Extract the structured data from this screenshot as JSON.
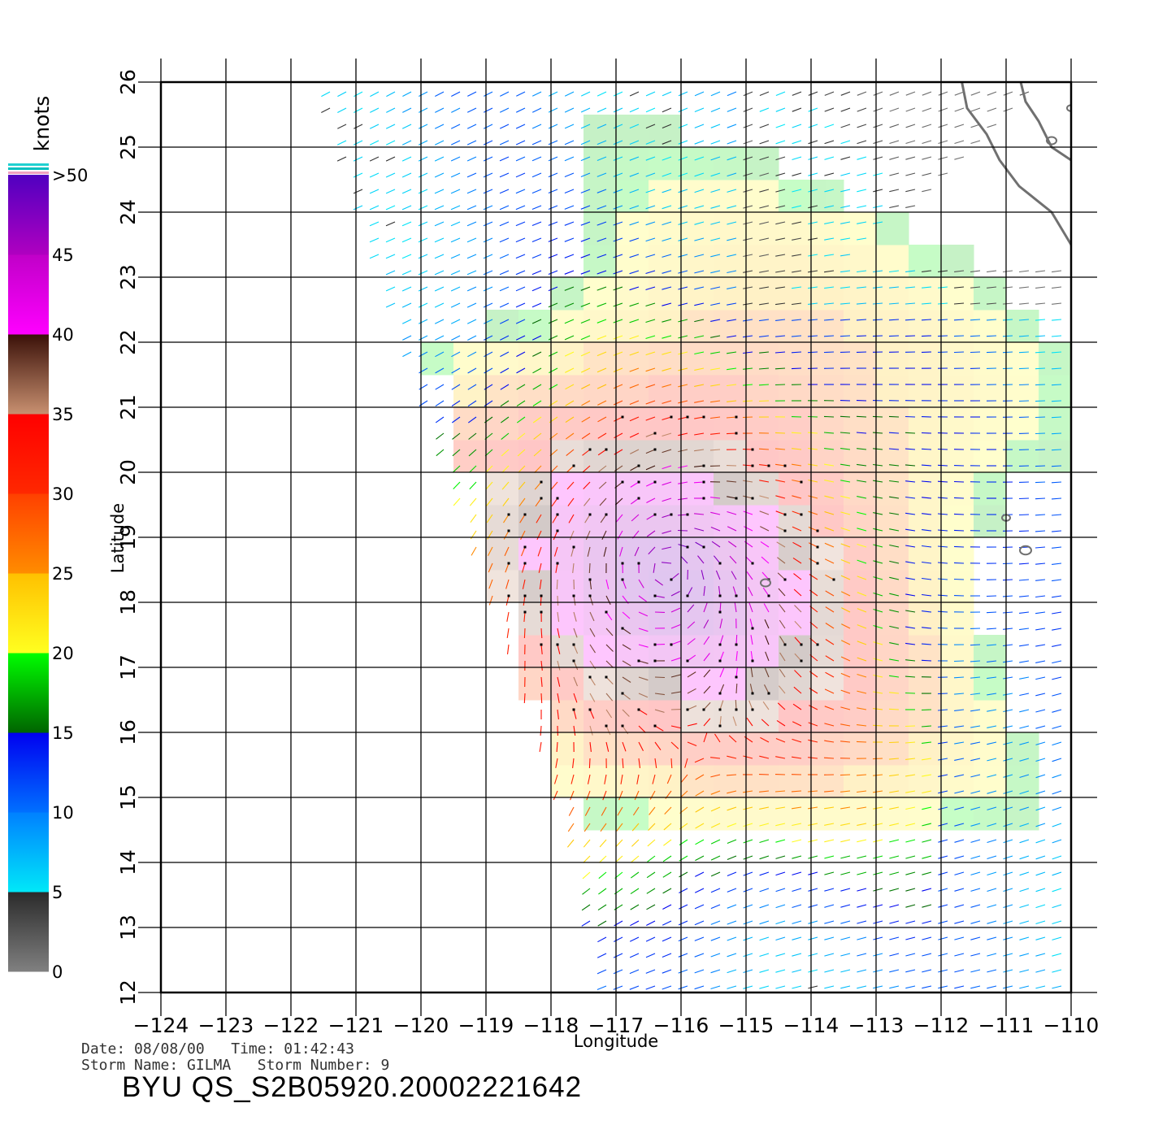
{
  "chart_data": {
    "type": "wind-vector-map",
    "xlabel": "Longitude",
    "ylabel": "Latitude",
    "xlim": [
      -124,
      -110
    ],
    "ylim": [
      12,
      26
    ],
    "x_ticks": [
      "−124",
      "−123",
      "−122",
      "−121",
      "−120",
      "−119",
      "−118",
      "−117",
      "−116",
      "−115",
      "−114",
      "−113",
      "−112",
      "−111",
      "−110"
    ],
    "y_ticks": [
      "12",
      "13",
      "14",
      "15",
      "16",
      "17",
      "18",
      "19",
      "20",
      "21",
      "22",
      "23",
      "24",
      "25",
      "26"
    ],
    "grid": true,
    "storm_center": {
      "lon": -116.2,
      "lat": 18.5
    },
    "colorbar": {
      "unit": "knots",
      "labels": [
        ">50",
        "45",
        "40",
        "35",
        "30",
        "25",
        "20",
        "15",
        "10",
        "5",
        "0"
      ],
      "bands": [
        {
          "from": 0,
          "to": 5,
          "colors": [
            "#808080",
            "#2a2a2a"
          ]
        },
        {
          "from": 5,
          "to": 10,
          "colors": [
            "#00e8f8",
            "#0080ff"
          ]
        },
        {
          "from": 10,
          "to": 15,
          "colors": [
            "#0070ff",
            "#0000f0"
          ]
        },
        {
          "from": 15,
          "to": 20,
          "colors": [
            "#006400",
            "#00ff00"
          ]
        },
        {
          "from": 20,
          "to": 25,
          "colors": [
            "#ffff20",
            "#ffc000"
          ]
        },
        {
          "from": 25,
          "to": 30,
          "colors": [
            "#ff8c00",
            "#ff4000"
          ]
        },
        {
          "from": 30,
          "to": 35,
          "colors": [
            "#ff2800",
            "#ff0000"
          ]
        },
        {
          "from": 35,
          "to": 40,
          "colors": [
            "#c89070",
            "#3a1008"
          ]
        },
        {
          "from": 40,
          "to": 45,
          "colors": [
            "#ff00ff",
            "#c000c8"
          ]
        },
        {
          "from": 45,
          "to": 50,
          "colors": [
            "#b000c0",
            "#5000c0"
          ]
        }
      ]
    }
  },
  "info": {
    "date_line": "Date: 08/08/00   Time: 01:42:43",
    "storm_line": "Storm Name: GILMA   Storm Number: 9",
    "product_id": "BYU QS_S2B05920.20002221642"
  }
}
